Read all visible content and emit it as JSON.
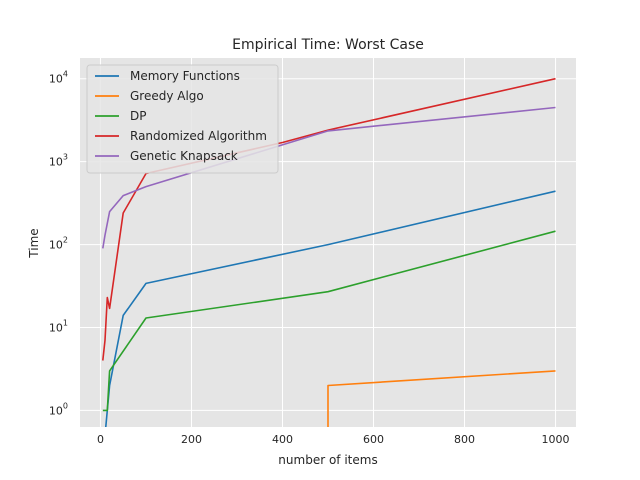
{
  "chart_data": {
    "type": "line",
    "title": "Empirical Time: Worst Case",
    "xlabel": "number of items",
    "ylabel": "Time",
    "xlim": [
      -45,
      1045
    ],
    "ylim_log10": [
      -0.2,
      4.25
    ],
    "yscale": "log",
    "grid": true,
    "legend_position": "top-left",
    "x_ticks": [
      0,
      200,
      400,
      600,
      800,
      1000
    ],
    "x_tick_labels": [
      "0",
      "200",
      "400",
      "600",
      "800",
      "1000"
    ],
    "y_ticks": [
      1,
      10,
      100,
      1000,
      10000
    ],
    "y_tick_labels": [
      {
        "base": "10",
        "exp": "0"
      },
      {
        "base": "10",
        "exp": "1"
      },
      {
        "base": "10",
        "exp": "2"
      },
      {
        "base": "10",
        "exp": "3"
      },
      {
        "base": "10",
        "exp": "4"
      }
    ],
    "series": [
      {
        "name": "Memory Functions",
        "color": "#1f77b4",
        "points": [
          [
            10,
            0.5
          ],
          [
            20,
            2
          ],
          [
            50,
            14
          ],
          [
            100,
            34
          ],
          [
            500,
            100
          ],
          [
            1000,
            440
          ]
        ]
      },
      {
        "name": "Greedy Algo",
        "color": "#ff7f0e",
        "points": [
          [
            500,
            0.5
          ],
          [
            500,
            2
          ],
          [
            1000,
            3
          ]
        ]
      },
      {
        "name": "DP",
        "color": "#2ca02c",
        "points": [
          [
            5,
            1
          ],
          [
            15,
            1
          ],
          [
            20,
            3
          ],
          [
            100,
            13
          ],
          [
            500,
            27
          ],
          [
            1000,
            145
          ]
        ]
      },
      {
        "name": "Randomized Algorithm",
        "color": "#d62728",
        "points": [
          [
            5,
            4
          ],
          [
            10,
            7
          ],
          [
            15,
            23
          ],
          [
            20,
            17
          ],
          [
            50,
            240
          ],
          [
            100,
            720
          ],
          [
            400,
            1700
          ],
          [
            500,
            2400
          ],
          [
            1000,
            10000
          ]
        ]
      },
      {
        "name": "Genetic Knapsack",
        "color": "#9467bd",
        "points": [
          [
            5,
            90
          ],
          [
            10,
            130
          ],
          [
            20,
            250
          ],
          [
            50,
            390
          ],
          [
            100,
            500
          ],
          [
            500,
            2350
          ],
          [
            1000,
            4500
          ]
        ]
      }
    ]
  }
}
